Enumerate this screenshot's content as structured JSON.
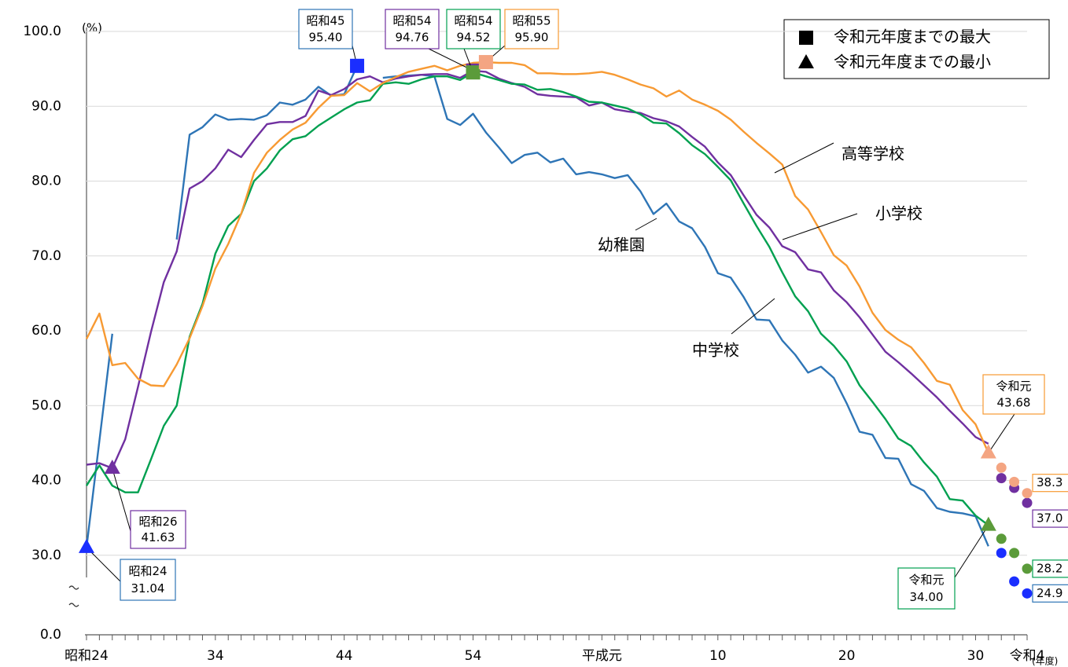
{
  "chart_data": {
    "type": "line",
    "y_unit": "(%)",
    "x_unit": "(年度)",
    "categories": [
      "昭和24",
      null,
      null,
      null,
      null,
      null,
      null,
      null,
      null,
      null,
      "34",
      null,
      null,
      null,
      null,
      null,
      null,
      null,
      null,
      null,
      "44",
      null,
      null,
      null,
      null,
      null,
      null,
      null,
      null,
      null,
      "54",
      null,
      null,
      null,
      null,
      null,
      null,
      null,
      null,
      null,
      "平成元",
      null,
      null,
      null,
      null,
      null,
      null,
      null,
      null,
      "10",
      null,
      null,
      null,
      null,
      null,
      null,
      null,
      null,
      null,
      "20",
      null,
      null,
      null,
      null,
      null,
      null,
      null,
      null,
      null,
      "30",
      null,
      null,
      null,
      "令和4"
    ],
    "ylim": [
      0,
      100
    ],
    "axis_break": 20,
    "yticks": [
      {
        "value": 100,
        "label": "100.0"
      },
      {
        "value": 90,
        "label": "90.0"
      },
      {
        "value": 80,
        "label": "80.0"
      },
      {
        "value": 70,
        "label": "70.0"
      },
      {
        "value": 60,
        "label": "60.0"
      },
      {
        "value": 50,
        "label": "50.0"
      },
      {
        "value": 40,
        "label": "40.0"
      },
      {
        "value": 30,
        "label": "30.0"
      },
      {
        "value": 0,
        "label": "0.0"
      }
    ],
    "grid": true,
    "series": [
      {
        "name": "幼稚園",
        "color": "#2e75b6",
        "marker_color": "#1a2eff",
        "end_label": "24.9",
        "values": [
          31.04,
          45.3,
          59.6,
          null,
          null,
          null,
          null,
          72.2,
          86.2,
          87.2,
          88.9,
          88.2,
          88.3,
          88.2,
          88.8,
          90.5,
          90.2,
          90.9,
          92.6,
          91.4,
          91.6,
          95.4,
          null,
          93.8,
          94.0,
          94.1,
          94.2,
          94.0,
          88.3,
          87.5,
          89.0,
          86.5,
          84.5,
          82.4,
          83.5,
          83.8,
          82.5,
          83.0,
          80.9,
          81.2,
          80.9,
          80.4,
          80.8,
          78.6,
          75.6,
          77.0,
          74.6,
          73.7,
          71.2,
          67.7,
          67.1,
          64.5,
          61.5,
          61.4,
          58.7,
          56.8,
          54.4,
          55.2,
          53.7,
          50.3,
          46.5,
          46.1,
          43.0,
          42.9,
          39.5,
          38.6,
          36.3,
          35.8,
          35.6,
          35.2,
          31.2,
          null,
          null,
          null
        ],
        "dot_values": [
          null,
          null,
          null,
          null,
          null,
          null,
          null,
          null,
          null,
          null,
          null,
          null,
          null,
          null,
          null,
          null,
          null,
          null,
          null,
          null,
          null,
          null,
          null,
          null,
          null,
          null,
          null,
          null,
          null,
          null,
          null,
          null,
          null,
          null,
          null,
          null,
          null,
          null,
          null,
          null,
          null,
          null,
          null,
          null,
          null,
          null,
          null,
          null,
          null,
          null,
          null,
          null,
          null,
          null,
          null,
          null,
          null,
          null,
          null,
          null,
          null,
          null,
          null,
          null,
          null,
          null,
          null,
          null,
          null,
          null,
          null,
          30.3,
          26.5,
          24.9
        ]
      },
      {
        "name": "小学校",
        "color": "#7030a0",
        "marker_color": "#7030a0",
        "end_label": "37.0",
        "values": [
          42.1,
          42.3,
          41.63,
          45.5,
          52.5,
          59.8,
          66.5,
          70.6,
          79.0,
          80.0,
          81.7,
          84.2,
          83.2,
          85.5,
          87.6,
          87.9,
          87.9,
          88.7,
          92.1,
          91.5,
          92.3,
          93.6,
          94.0,
          93.2,
          93.7,
          94.0,
          94.2,
          94.3,
          94.3,
          93.8,
          94.76,
          94.6,
          93.7,
          93.1,
          92.6,
          91.6,
          91.4,
          91.3,
          91.2,
          90.1,
          90.5,
          89.6,
          89.3,
          89.1,
          88.4,
          88.0,
          87.3,
          85.9,
          84.6,
          82.5,
          80.8,
          78.1,
          75.5,
          73.8,
          71.3,
          70.5,
          68.2,
          67.8,
          65.4,
          63.8,
          61.8,
          59.5,
          57.2,
          55.8,
          54.3,
          52.7,
          51.1,
          49.3,
          47.6,
          45.8,
          44.9,
          null,
          null,
          null
        ],
        "dot_values": [
          null,
          null,
          null,
          null,
          null,
          null,
          null,
          null,
          null,
          null,
          null,
          null,
          null,
          null,
          null,
          null,
          null,
          null,
          null,
          null,
          null,
          null,
          null,
          null,
          null,
          null,
          null,
          null,
          null,
          null,
          null,
          null,
          null,
          null,
          null,
          null,
          null,
          null,
          null,
          null,
          null,
          null,
          null,
          null,
          null,
          null,
          null,
          null,
          null,
          null,
          null,
          null,
          null,
          null,
          null,
          null,
          null,
          null,
          null,
          null,
          null,
          null,
          null,
          null,
          null,
          null,
          null,
          null,
          null,
          null,
          null,
          40.3,
          39.0,
          37.0
        ]
      },
      {
        "name": "中学校",
        "color": "#00a050",
        "marker_color": "#5b9b3a",
        "end_label": "28.2",
        "values": [
          39.3,
          42.0,
          39.3,
          38.4,
          38.4,
          42.8,
          47.3,
          50.0,
          59.2,
          63.6,
          70.3,
          74.0,
          75.6,
          80.0,
          81.7,
          84.1,
          85.6,
          86.0,
          87.4,
          88.5,
          89.6,
          90.5,
          90.8,
          93.0,
          93.2,
          93.0,
          93.6,
          94.0,
          94.0,
          93.5,
          94.52,
          94.0,
          93.5,
          93.0,
          92.9,
          92.2,
          92.3,
          91.9,
          91.3,
          90.6,
          90.5,
          90.1,
          89.7,
          88.9,
          87.8,
          87.7,
          86.4,
          84.8,
          83.6,
          81.9,
          80.1,
          77.0,
          74.0,
          71.2,
          67.8,
          64.6,
          62.6,
          59.6,
          58.0,
          55.9,
          52.7,
          50.5,
          48.2,
          45.6,
          44.6,
          42.4,
          40.5,
          37.5,
          37.3,
          35.3,
          34.0,
          null,
          null,
          null
        ],
        "dot_values": [
          null,
          null,
          null,
          null,
          null,
          null,
          null,
          null,
          null,
          null,
          null,
          null,
          null,
          null,
          null,
          null,
          null,
          null,
          null,
          null,
          null,
          null,
          null,
          null,
          null,
          null,
          null,
          null,
          null,
          null,
          null,
          null,
          null,
          null,
          null,
          null,
          null,
          null,
          null,
          null,
          null,
          null,
          null,
          null,
          null,
          null,
          null,
          null,
          null,
          null,
          null,
          null,
          null,
          null,
          null,
          null,
          null,
          null,
          null,
          null,
          null,
          null,
          null,
          null,
          null,
          null,
          null,
          null,
          null,
          null,
          null,
          32.2,
          30.3,
          28.2
        ]
      },
      {
        "name": "高等学校",
        "color": "#f79a33",
        "marker_color": "#f4a582",
        "end_label": "38.3",
        "values": [
          58.9,
          62.3,
          55.4,
          55.7,
          53.6,
          52.7,
          52.6,
          55.5,
          59.0,
          63.3,
          68.3,
          71.6,
          75.6,
          81.1,
          83.8,
          85.5,
          86.9,
          87.8,
          89.8,
          91.4,
          91.5,
          93.1,
          92.0,
          93.1,
          93.9,
          94.6,
          95.0,
          95.4,
          94.8,
          95.4,
          95.8,
          95.9,
          95.8,
          95.8,
          95.5,
          94.4,
          94.4,
          94.3,
          94.3,
          94.4,
          94.6,
          94.2,
          93.6,
          92.9,
          92.4,
          91.3,
          92.1,
          90.9,
          90.2,
          89.4,
          88.2,
          86.6,
          85.1,
          83.7,
          82.2,
          78.0,
          76.2,
          73.2,
          70.1,
          68.7,
          65.9,
          62.4,
          60.1,
          58.8,
          57.8,
          55.7,
          53.3,
          52.8,
          49.4,
          47.5,
          43.68,
          null,
          null,
          null
        ],
        "dot_values": [
          null,
          null,
          null,
          null,
          null,
          null,
          null,
          null,
          null,
          null,
          null,
          null,
          null,
          null,
          null,
          null,
          null,
          null,
          null,
          null,
          null,
          null,
          null,
          null,
          null,
          null,
          null,
          null,
          null,
          null,
          null,
          null,
          null,
          null,
          null,
          null,
          null,
          null,
          null,
          null,
          null,
          null,
          null,
          null,
          null,
          null,
          null,
          null,
          null,
          null,
          null,
          null,
          null,
          null,
          null,
          null,
          null,
          null,
          null,
          null,
          null,
          null,
          null,
          null,
          null,
          null,
          null,
          null,
          null,
          null,
          null,
          41.7,
          39.8,
          38.3
        ]
      }
    ],
    "annotations": [
      {
        "series": 0,
        "marker": "square",
        "index": 21,
        "value": 95.4,
        "era": "昭和45",
        "value_label": "95.40"
      },
      {
        "series": 1,
        "marker": "square",
        "index": 30,
        "value": 94.76,
        "era": "昭和54",
        "value_label": "94.76"
      },
      {
        "series": 2,
        "marker": "square",
        "index": 30,
        "value": 94.52,
        "era": "昭和54",
        "value_label": "94.52"
      },
      {
        "series": 3,
        "marker": "square",
        "index": 31,
        "value": 95.9,
        "era": "昭和55",
        "value_label": "95.90"
      },
      {
        "series": 0,
        "marker": "triangle",
        "index": 0,
        "value": 31.04,
        "era": "昭和24",
        "value_label": "31.04"
      },
      {
        "series": 1,
        "marker": "triangle",
        "index": 2,
        "value": 41.63,
        "era": "昭和26",
        "value_label": "41.63"
      },
      {
        "series": 2,
        "marker": "triangle",
        "index": 70,
        "value": 34.0,
        "era": "令和元",
        "value_label": "34.00"
      },
      {
        "series": 3,
        "marker": "triangle",
        "index": 70,
        "value": 43.68,
        "era": "令和元",
        "value_label": "43.68"
      }
    ],
    "legend": [
      {
        "marker": "square",
        "label": "令和元年度までの最大"
      },
      {
        "marker": "triangle",
        "label": "令和元年度までの最小"
      }
    ]
  }
}
